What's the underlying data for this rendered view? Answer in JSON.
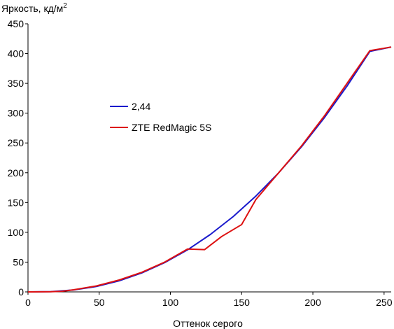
{
  "chart_data": {
    "type": "line",
    "ylabel": "Яркость, кд/м",
    "ylabel_superscript": "2",
    "xlabel": "Оттенок серого",
    "xlim": [
      0,
      255
    ],
    "ylim": [
      0,
      450
    ],
    "xticks": [
      0,
      50,
      100,
      150,
      200,
      250
    ],
    "yticks": [
      0,
      50,
      100,
      150,
      200,
      250,
      300,
      350,
      400,
      450
    ],
    "grid": false,
    "legend_position": "center-left",
    "series": [
      {
        "name": "2,44",
        "color": "#1a1acc",
        "x": [
          0,
          16,
          32,
          48,
          64,
          80,
          96,
          112,
          128,
          144,
          160,
          176,
          192,
          208,
          224,
          240,
          255
        ],
        "y": [
          0,
          0.5,
          3.2,
          9.1,
          18.6,
          31.9,
          49.2,
          70.6,
          96.3,
          126.3,
          160.8,
          199.9,
          243.6,
          292.1,
          345.5,
          403.7,
          411
        ]
      },
      {
        "name": "ZTE RedMagic 5S",
        "color": "#dd1111",
        "x": [
          0,
          16,
          24,
          32,
          48,
          64,
          80,
          96,
          112,
          124,
          136,
          150,
          160,
          176,
          192,
          208,
          224,
          240,
          255
        ],
        "y": [
          0,
          0.3,
          1,
          3.5,
          10,
          20,
          33,
          50,
          72,
          71,
          93,
          113,
          155,
          200,
          245,
          295,
          350,
          405,
          411
        ]
      }
    ]
  }
}
